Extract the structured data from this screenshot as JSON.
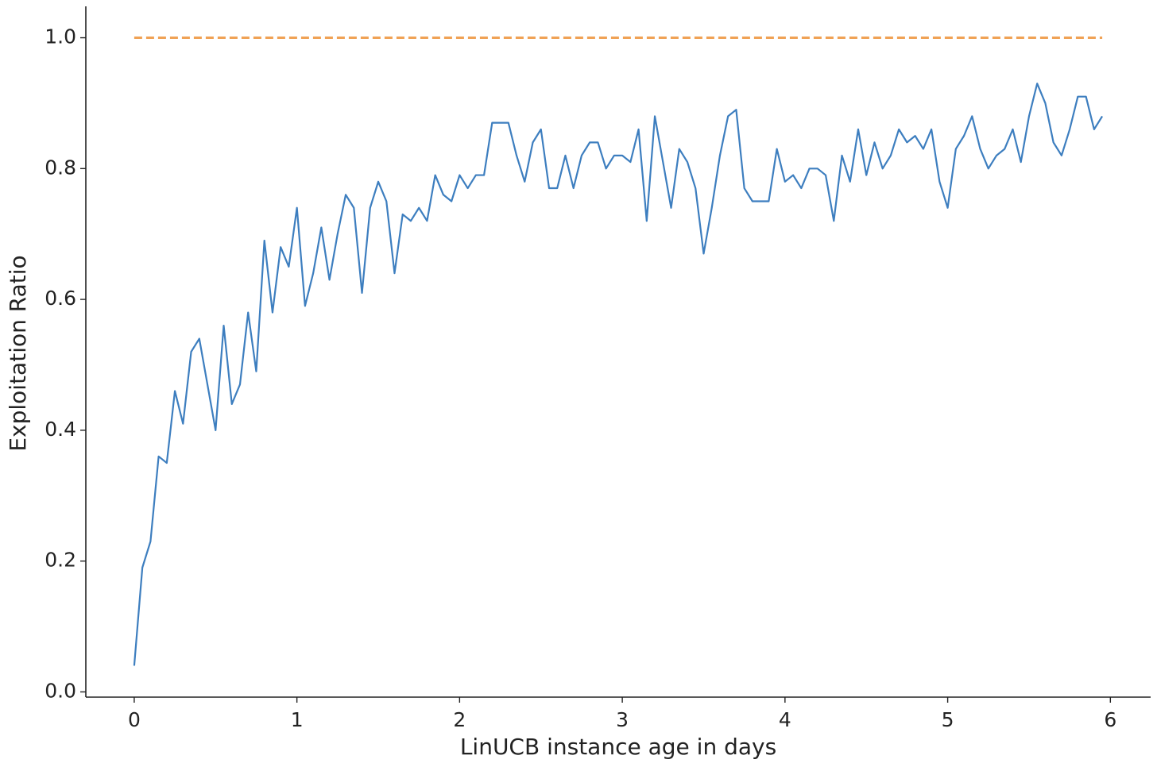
{
  "chart_data": {
    "type": "line",
    "xlabel": "LinUCB instance age in days",
    "ylabel": "Exploitation Ratio",
    "xlim": [
      -0.2975,
      6.2475
    ],
    "ylim": [
      -0.008,
      1.048
    ],
    "xticks": [
      0,
      1,
      2,
      3,
      4,
      5,
      6
    ],
    "yticks": [
      {
        "value": 0,
        "label": "0.0"
      },
      0.2,
      0.4,
      0.6,
      0.8,
      {
        "value": 1,
        "label": "1.0"
      }
    ],
    "grid": false,
    "series": [
      {
        "color": "#3d7ebf",
        "dash": "solid",
        "x": [
          0,
          0.05,
          0.1,
          0.15,
          0.2,
          0.25,
          0.3,
          0.35,
          0.4,
          0.45,
          0.5,
          0.55,
          0.6,
          0.65,
          0.7,
          0.75,
          0.8,
          0.85,
          0.9,
          0.95,
          1,
          1.05,
          1.1,
          1.15,
          1.2,
          1.25,
          1.3,
          1.35,
          1.4,
          1.45,
          1.5,
          1.55,
          1.6,
          1.65,
          1.7,
          1.75,
          1.8,
          1.85,
          1.9,
          1.95,
          2,
          2.05,
          2.1,
          2.15,
          2.2,
          2.25,
          2.3,
          2.35,
          2.4,
          2.45,
          2.5,
          2.55,
          2.6,
          2.65,
          2.7,
          2.75,
          2.8,
          2.85,
          2.9,
          2.95,
          3,
          3.05,
          3.1,
          3.15,
          3.2,
          3.25,
          3.3,
          3.35,
          3.4,
          3.45,
          3.5,
          3.55,
          3.6,
          3.65,
          3.7,
          3.75,
          3.8,
          3.85,
          3.9,
          3.95,
          4,
          4.05,
          4.1,
          4.15,
          4.2,
          4.25,
          4.3,
          4.35,
          4.4,
          4.45,
          4.5,
          4.55,
          4.6,
          4.65,
          4.7,
          4.75,
          4.8,
          4.85,
          4.9,
          4.95,
          5,
          5.05,
          5.1,
          5.15,
          5.2,
          5.25,
          5.3,
          5.35,
          5.4,
          5.45,
          5.5,
          5.55,
          5.6,
          5.65,
          5.7,
          5.75,
          5.8,
          5.85,
          5.9,
          5.95
        ],
        "values": [
          0.04,
          0.19,
          0.23,
          0.36,
          0.35,
          0.46,
          0.41,
          0.52,
          0.54,
          0.47,
          0.4,
          0.56,
          0.44,
          0.47,
          0.58,
          0.49,
          0.69,
          0.58,
          0.68,
          0.65,
          0.74,
          0.59,
          0.64,
          0.71,
          0.63,
          0.7,
          0.76,
          0.74,
          0.61,
          0.74,
          0.78,
          0.75,
          0.64,
          0.73,
          0.72,
          0.74,
          0.72,
          0.79,
          0.76,
          0.75,
          0.79,
          0.77,
          0.79,
          0.79,
          0.87,
          0.87,
          0.87,
          0.82,
          0.78,
          0.84,
          0.86,
          0.77,
          0.77,
          0.82,
          0.77,
          0.82,
          0.84,
          0.84,
          0.8,
          0.82,
          0.82,
          0.81,
          0.86,
          0.72,
          0.88,
          0.81,
          0.74,
          0.83,
          0.81,
          0.77,
          0.67,
          0.74,
          0.82,
          0.88,
          0.89,
          0.77,
          0.75,
          0.75,
          0.75,
          0.83,
          0.78,
          0.79,
          0.77,
          0.8,
          0.8,
          0.79,
          0.72,
          0.82,
          0.78,
          0.86,
          0.79,
          0.84,
          0.8,
          0.82,
          0.86,
          0.84,
          0.85,
          0.83,
          0.86,
          0.78,
          0.74,
          0.83,
          0.85,
          0.88,
          0.83,
          0.8,
          0.82,
          0.83,
          0.86,
          0.81,
          0.88,
          0.93,
          0.9,
          0.84,
          0.82,
          0.86,
          0.91,
          0.91,
          0.86,
          0.88
        ]
      },
      {
        "color": "#f0a255",
        "dash": "dashed",
        "x": [
          0,
          5.95
        ],
        "values": [
          1,
          1
        ]
      }
    ]
  }
}
